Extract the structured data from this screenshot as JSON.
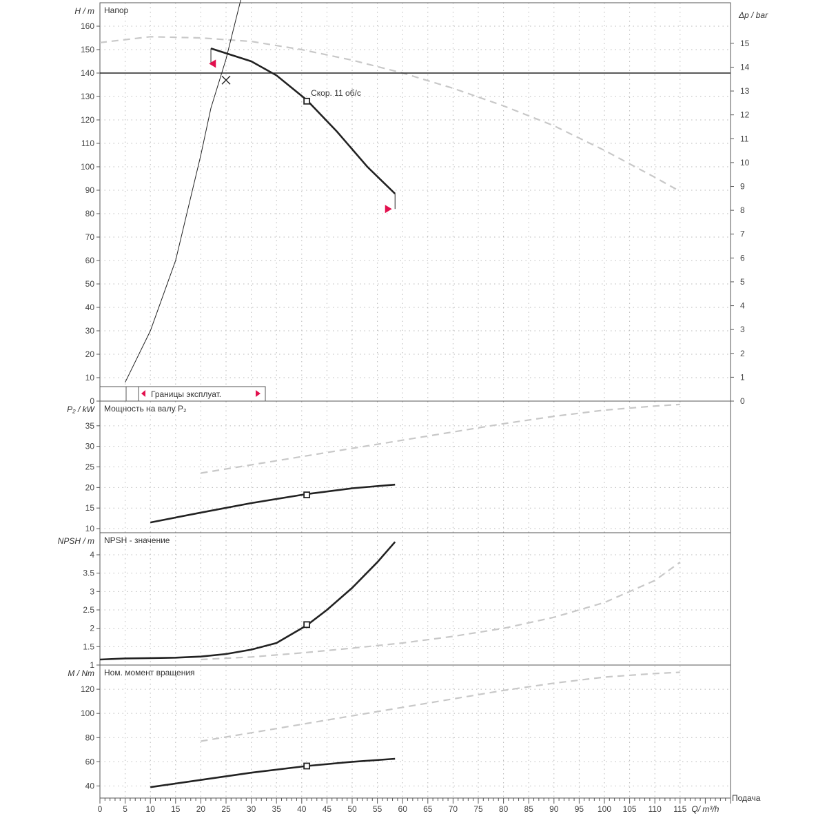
{
  "chart_data": [
    {
      "type": "line",
      "panel": "head",
      "title": "Напор",
      "ylabel": "H / m",
      "y2label": "Δp / bar",
      "xlim": [
        0,
        125
      ],
      "ylim": [
        0,
        170
      ],
      "y2lim": [
        0,
        16.7
      ],
      "yticks": [
        0,
        10,
        20,
        30,
        40,
        50,
        60,
        70,
        80,
        90,
        100,
        110,
        120,
        130,
        140,
        150,
        160
      ],
      "y2ticks": [
        0,
        1,
        2,
        3,
        4,
        5,
        6,
        7,
        8,
        9,
        10,
        11,
        12,
        13,
        14,
        15
      ],
      "series": [
        {
          "role": "pump-curve",
          "x": [
            22,
            30,
            35,
            41,
            47,
            53,
            58.5
          ],
          "y": [
            150.5,
            145,
            139,
            128.5,
            115,
            100,
            88.5
          ]
        },
        {
          "role": "max-curve",
          "x": [
            0,
            10,
            20,
            30,
            40,
            50,
            60,
            70,
            80,
            90,
            100,
            110,
            115
          ],
          "y": [
            153,
            155.5,
            155,
            153.5,
            150,
            145.5,
            140,
            133.5,
            126,
            117.5,
            107,
            95.5,
            89.5
          ]
        },
        {
          "role": "system-curve",
          "x": [
            5,
            10,
            15,
            20,
            22,
            25,
            28
          ],
          "y": [
            8,
            30,
            60,
            105,
            125,
            146,
            172
          ]
        }
      ],
      "markers": [
        {
          "role": "operating-point",
          "x": 41,
          "y": 128,
          "label": "Скор. 11 об/с"
        },
        {
          "role": "duty-point",
          "x": 25,
          "y": 137
        },
        {
          "role": "min-flow",
          "x": 22.3,
          "y": 144
        },
        {
          "role": "max-flow",
          "x": 57.2,
          "y": 82
        }
      ],
      "reference_line": {
        "y": 140
      },
      "legend": {
        "placement": "bottom-left",
        "label": "Границы эксплуат."
      }
    },
    {
      "type": "line",
      "panel": "power",
      "title": "Мощность на валу P₂",
      "ylabel": "P₂ / kW",
      "ylim": [
        9,
        41
      ],
      "yticks": [
        10,
        15,
        20,
        25,
        30,
        35
      ],
      "series": [
        {
          "role": "pump-curve",
          "x": [
            10,
            20,
            30,
            41,
            50,
            58.5
          ],
          "y": [
            11.5,
            13.9,
            16.2,
            18.4,
            19.8,
            20.7
          ]
        },
        {
          "role": "max-curve",
          "x": [
            20,
            30,
            40,
            50,
            60,
            70,
            80,
            90,
            100,
            110,
            115
          ],
          "y": [
            23.5,
            25.5,
            27.5,
            29.5,
            31.5,
            33.5,
            35.5,
            37.3,
            38.8,
            39.8,
            40.2
          ]
        }
      ],
      "markers": [
        {
          "role": "operating-point",
          "x": 41,
          "y": 18.2
        }
      ]
    },
    {
      "type": "line",
      "panel": "npsh",
      "title": "NPSH - значение",
      "ylabel": "NPSH / m",
      "ylim": [
        1,
        4.6
      ],
      "yticks": [
        1,
        1.5,
        2,
        2.5,
        3,
        3.5,
        4
      ],
      "ytick_labels": [
        "1",
        "1.5",
        "2",
        "2.5",
        "3",
        "3.5",
        "4"
      ],
      "series": [
        {
          "role": "pump-curve",
          "x": [
            0,
            5,
            10,
            15,
            20,
            25,
            30,
            35,
            41,
            45,
            50,
            55,
            58.5
          ],
          "y": [
            1.15,
            1.18,
            1.19,
            1.2,
            1.23,
            1.3,
            1.42,
            1.6,
            2.08,
            2.5,
            3.1,
            3.8,
            4.35
          ]
        },
        {
          "role": "max-curve",
          "x": [
            20,
            30,
            40,
            50,
            60,
            70,
            80,
            90,
            100,
            110,
            115
          ],
          "y": [
            1.15,
            1.22,
            1.33,
            1.46,
            1.6,
            1.78,
            2.0,
            2.3,
            2.7,
            3.3,
            3.8
          ]
        }
      ],
      "markers": [
        {
          "role": "operating-point",
          "x": 41,
          "y": 2.1
        }
      ]
    },
    {
      "type": "line",
      "panel": "torque",
      "title": "Ном. момент вращения",
      "ylabel": "M / Nm",
      "xlabel": "Q / m³/h",
      "ylim": [
        30,
        140
      ],
      "yticks": [
        40,
        60,
        80,
        100,
        120
      ],
      "xticks": [
        0,
        5,
        10,
        15,
        20,
        25,
        30,
        35,
        40,
        45,
        50,
        55,
        60,
        65,
        70,
        75,
        80,
        85,
        90,
        95,
        100,
        105,
        110,
        115
      ],
      "xtick_labels": [
        "0",
        "5",
        "10",
        "15",
        "20",
        "25",
        "30",
        "35",
        "40",
        "45",
        "50",
        "55",
        "60",
        "65",
        "70",
        "75",
        "80",
        "85",
        "90",
        "95",
        "100",
        "105",
        "110",
        "115"
      ],
      "x_unit_label": "Q/ m³/h",
      "x_corner_label": "Подача",
      "series": [
        {
          "role": "pump-curve",
          "x": [
            10,
            20,
            30,
            41,
            50,
            58.5
          ],
          "y": [
            39,
            45,
            51,
            56.5,
            60,
            62.5
          ]
        },
        {
          "role": "max-curve",
          "x": [
            20,
            30,
            40,
            50,
            60,
            70,
            80,
            90,
            100,
            110,
            115
          ],
          "y": [
            77,
            84,
            91,
            98,
            105,
            112,
            119,
            125,
            130,
            133,
            134
          ]
        }
      ],
      "markers": [
        {
          "role": "operating-point",
          "x": 41,
          "y": 56.5
        }
      ]
    }
  ],
  "colors": {
    "curve": "#222222",
    "max_curve": "#c8c8c8",
    "marker_red": "#e2104e",
    "frame": "#555555"
  }
}
